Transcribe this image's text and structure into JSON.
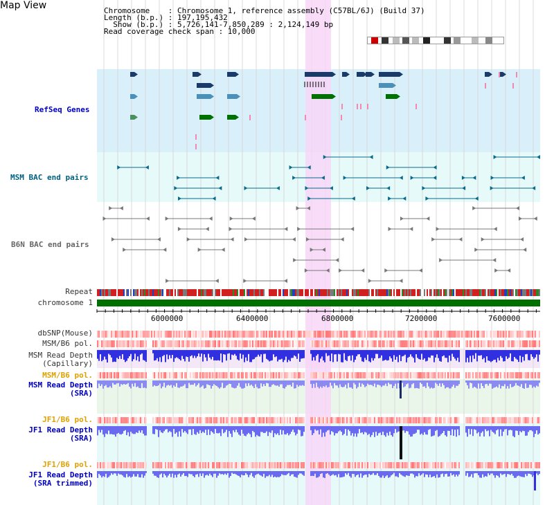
{
  "title": "Map View",
  "info": {
    "line1": "Chromosome    : Chromosome 1, reference assembly (C57BL/6J) (Build 37)",
    "line2": "Length (b.p.) : 197,195,432",
    "line3": "  Show (b.p.) : 5,726,141-7,850,289 : 2,124,149 bp",
    "line4": "Read coverage check span : 10,000"
  },
  "track_labels": {
    "refseq": "RefSeq Genes",
    "msm_bac": "MSM BAC end pairs",
    "b6n_bac": "B6N BAC end pairs",
    "repeat": "Repeat",
    "chromosome": "chromosome 1",
    "dbsnp": "dbSNP(Mouse)",
    "msm_b6_pol": "MSM/B6 pol.",
    "msm_read_cap_1": "MSM Read Depth",
    "msm_read_cap_2": "(Capillary)",
    "msm_b6_pol2": "MSM/B6 pol.",
    "msm_read_sra_1": "MSM Read Depth",
    "msm_read_sra_2": "(SRA)",
    "jf1_b6_pol": "JF1/B6 pol.",
    "jf1_read_sra_1": "JF1 Read Depth",
    "jf1_read_sra_2": "(SRA)",
    "jf1_b6_pol2": "JF1/B6 pol.",
    "jf1_read_trim_1": "JF1 Read Depth",
    "jf1_read_trim_2": "(SRA trimmed)"
  },
  "axis_ticks": [
    "6000000",
    "6400000",
    "6800000",
    "7200000",
    "7600000"
  ],
  "colors": {
    "refseq_bg": "#d9f0fa",
    "bac_bg": "#e6fafa",
    "highlight": "#f7d6f7",
    "chrom_green": "#007000",
    "depth_blue": "#3030e0",
    "pol_red": "#e03030"
  }
}
